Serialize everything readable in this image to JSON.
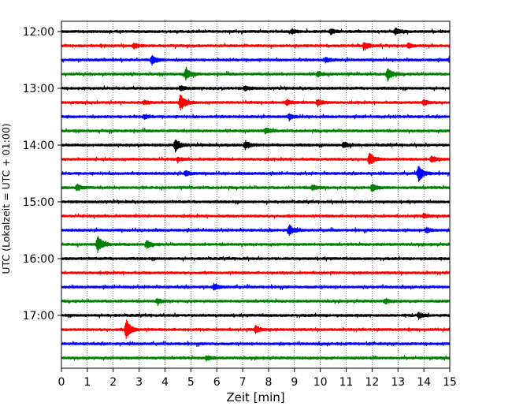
{
  "chart_data": {
    "type": "line",
    "xlabel": "Zeit  [min]",
    "ylabel": "UTC (Lokalzeit = UTC + 01:00)",
    "xlim": [
      0,
      15
    ],
    "x_ticks": [
      "0",
      "1",
      "2",
      "3",
      "4",
      "5",
      "6",
      "7",
      "8",
      "9",
      "10",
      "11",
      "12",
      "13",
      "14",
      "15"
    ],
    "y_ticks": [
      {
        "label": "12:00",
        "row": 0
      },
      {
        "label": "13:00",
        "row": 4
      },
      {
        "label": "14:00",
        "row": 8
      },
      {
        "label": "15:00",
        "row": 12
      },
      {
        "label": "16:00",
        "row": 16
      },
      {
        "label": "17:00",
        "row": 20
      }
    ],
    "trace_interval_minutes": 15,
    "grid": "vertical dotted at each minute",
    "colors": [
      "#000000",
      "#ff0000",
      "#0000ff",
      "#008000"
    ],
    "traces": [
      {
        "start": "12:00",
        "color": "#000000",
        "events": [
          {
            "x": 10.4,
            "a": 1.0
          },
          {
            "x": 12.9,
            "a": 1.2
          },
          {
            "x": 8.9,
            "a": 0.8
          }
        ]
      },
      {
        "start": "12:15",
        "color": "#ff0000",
        "events": [
          {
            "x": 11.7,
            "a": 1.5
          },
          {
            "x": 2.8,
            "a": 0.9
          },
          {
            "x": 13.4,
            "a": 0.8
          }
        ]
      },
      {
        "start": "12:30",
        "color": "#0000ff",
        "events": [
          {
            "x": 3.5,
            "a": 1.8
          },
          {
            "x": 15.0,
            "a": 1.2
          },
          {
            "x": 10.2,
            "a": 0.9
          }
        ]
      },
      {
        "start": "12:45",
        "color": "#008000",
        "events": [
          {
            "x": 4.8,
            "a": 2.5
          },
          {
            "x": 12.6,
            "a": 2.7
          },
          {
            "x": 9.9,
            "a": 1.0
          }
        ]
      },
      {
        "start": "13:00",
        "color": "#000000",
        "events": [
          {
            "x": 4.6,
            "a": 1.0
          },
          {
            "x": 7.1,
            "a": 0.8
          }
        ]
      },
      {
        "start": "13:15",
        "color": "#ff0000",
        "events": [
          {
            "x": 4.6,
            "a": 3.5
          },
          {
            "x": 9.9,
            "a": 1.4
          },
          {
            "x": 8.7,
            "a": 1.0
          },
          {
            "x": 14.0,
            "a": 1.0
          },
          {
            "x": 3.2,
            "a": 0.8
          }
        ]
      },
      {
        "start": "13:30",
        "color": "#0000ff",
        "events": [
          {
            "x": 8.8,
            "a": 1.0
          },
          {
            "x": 3.2,
            "a": 0.7
          }
        ]
      },
      {
        "start": "13:45",
        "color": "#008000",
        "events": [
          {
            "x": 7.9,
            "a": 1.0
          }
        ]
      },
      {
        "start": "14:00",
        "color": "#000000",
        "events": [
          {
            "x": 4.4,
            "a": 2.6
          },
          {
            "x": 7.1,
            "a": 1.6
          },
          {
            "x": 10.9,
            "a": 1.3
          }
        ]
      },
      {
        "start": "14:15",
        "color": "#ff0000",
        "events": [
          {
            "x": 11.9,
            "a": 2.5
          },
          {
            "x": 14.3,
            "a": 1.4
          },
          {
            "x": 4.5,
            "a": 0.7
          }
        ]
      },
      {
        "start": "14:30",
        "color": "#0000ff",
        "events": [
          {
            "x": 13.8,
            "a": 3.4
          },
          {
            "x": 4.8,
            "a": 1.0
          }
        ]
      },
      {
        "start": "14:45",
        "color": "#008000",
        "events": [
          {
            "x": 0.6,
            "a": 1.3
          },
          {
            "x": 12.0,
            "a": 1.4
          },
          {
            "x": 9.7,
            "a": 1.0
          }
        ]
      },
      {
        "start": "15:00",
        "color": "#000000",
        "events": []
      },
      {
        "start": "15:15",
        "color": "#ff0000",
        "events": [
          {
            "x": 14.0,
            "a": 0.9
          }
        ]
      },
      {
        "start": "15:30",
        "color": "#0000ff",
        "events": [
          {
            "x": 8.8,
            "a": 2.0
          },
          {
            "x": 14.1,
            "a": 1.0
          }
        ]
      },
      {
        "start": "15:45",
        "color": "#008000",
        "events": [
          {
            "x": 1.4,
            "a": 3.6
          },
          {
            "x": 3.3,
            "a": 1.4
          }
        ]
      },
      {
        "start": "16:00",
        "color": "#000000",
        "events": []
      },
      {
        "start": "16:15",
        "color": "#ff0000",
        "events": []
      },
      {
        "start": "16:30",
        "color": "#0000ff",
        "events": [
          {
            "x": 5.9,
            "a": 1.0
          }
        ]
      },
      {
        "start": "16:45",
        "color": "#008000",
        "events": [
          {
            "x": 3.7,
            "a": 1.0
          },
          {
            "x": 12.5,
            "a": 0.9
          }
        ]
      },
      {
        "start": "17:00",
        "color": "#000000",
        "events": [
          {
            "x": 13.8,
            "a": 1.0
          }
        ]
      },
      {
        "start": "17:15",
        "color": "#ff0000",
        "events": [
          {
            "x": 2.5,
            "a": 4.2
          },
          {
            "x": 7.5,
            "a": 1.5
          }
        ]
      },
      {
        "start": "17:30",
        "color": "#0000ff",
        "events": []
      },
      {
        "start": "17:45",
        "color": "#008000",
        "events": [
          {
            "x": 5.6,
            "a": 0.8
          }
        ]
      }
    ]
  }
}
